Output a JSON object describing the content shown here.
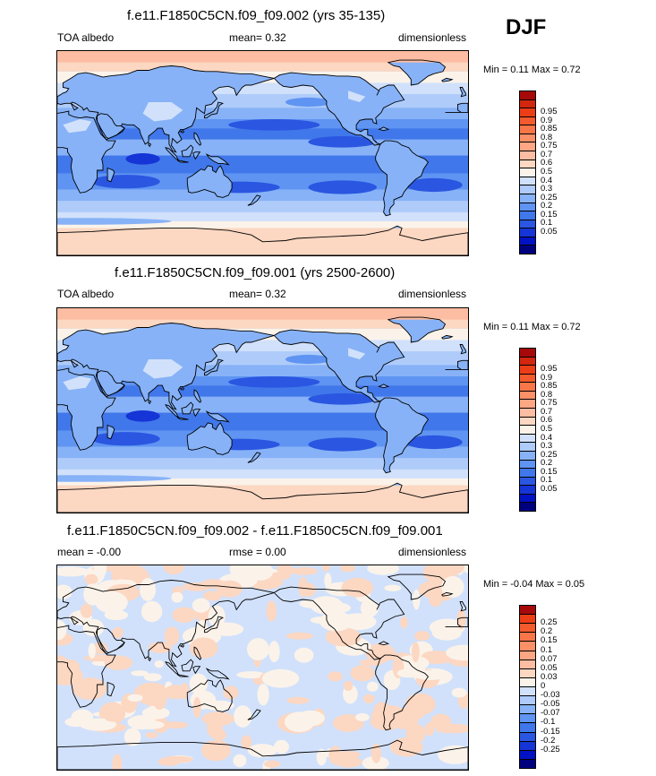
{
  "season": "DJF",
  "palette_main": [
    "#00007f",
    "#0012c4",
    "#1535d6",
    "#2a56e1",
    "#4077ea",
    "#5f94f2",
    "#87b2f7",
    "#aecbfa",
    "#d1e1fb",
    "#fbf3ea",
    "#fcd7c2",
    "#fdbda2",
    "#fda784",
    "#fc9067",
    "#f97649",
    "#f35a2d",
    "#eb3e17",
    "#d2260e",
    "#a5090a"
  ],
  "palette_diff": [
    "#00007f",
    "#0012c4",
    "#1535d6",
    "#2a56e1",
    "#4077ea",
    "#5f94f2",
    "#87b2f7",
    "#aecbfa",
    "#d1e1fb",
    "#fbf3ea",
    "#fcd7c2",
    "#fdbda2",
    "#fda784",
    "#fc9067",
    "#f97649",
    "#f35a2d",
    "#eb3e17",
    "#a5090a"
  ],
  "panels": [
    {
      "title": "f.e11.F1850C5CN.f09_f09.002 (yrs 35-135)",
      "left": "TOA albedo",
      "center": "mean=   0.32",
      "right": "dimensionless",
      "minmax": "Min =   0.11 Max =   0.72",
      "kind": "main",
      "levels": [
        "0.95",
        "0.9",
        "0.85",
        "0.8",
        "0.75",
        "0.7",
        "0.6",
        "0.5",
        "0.4",
        "0.3",
        "0.25",
        "0.2",
        "0.15",
        "0.1",
        "0.05"
      ]
    },
    {
      "title": "f.e11.F1850C5CN.f09_f09.001 (yrs 2500-2600)",
      "left": "TOA albedo",
      "center": "mean=   0.32",
      "right": "dimensionless",
      "minmax": "Min =   0.11 Max =   0.72",
      "kind": "main",
      "levels": [
        "0.95",
        "0.9",
        "0.85",
        "0.8",
        "0.75",
        "0.7",
        "0.6",
        "0.5",
        "0.4",
        "0.3",
        "0.25",
        "0.2",
        "0.15",
        "0.1",
        "0.05"
      ]
    },
    {
      "title": "f.e11.F1850C5CN.f09_f09.002 - f.e11.F1850C5CN.f09_f09.001",
      "left": "mean =  -0.00",
      "center": "rmse =   0.00",
      "right": "dimensionless",
      "minmax": "Min =  -0.04 Max =   0.05",
      "kind": "diff",
      "levels": [
        "0.25",
        "0.2",
        "0.15",
        "0.1",
        "0.07",
        "0.05",
        "0.03",
        "0",
        "-0.03",
        "-0.05",
        "-0.07",
        "-0.1",
        "-0.15",
        "-0.2",
        "-0.25"
      ]
    }
  ]
}
